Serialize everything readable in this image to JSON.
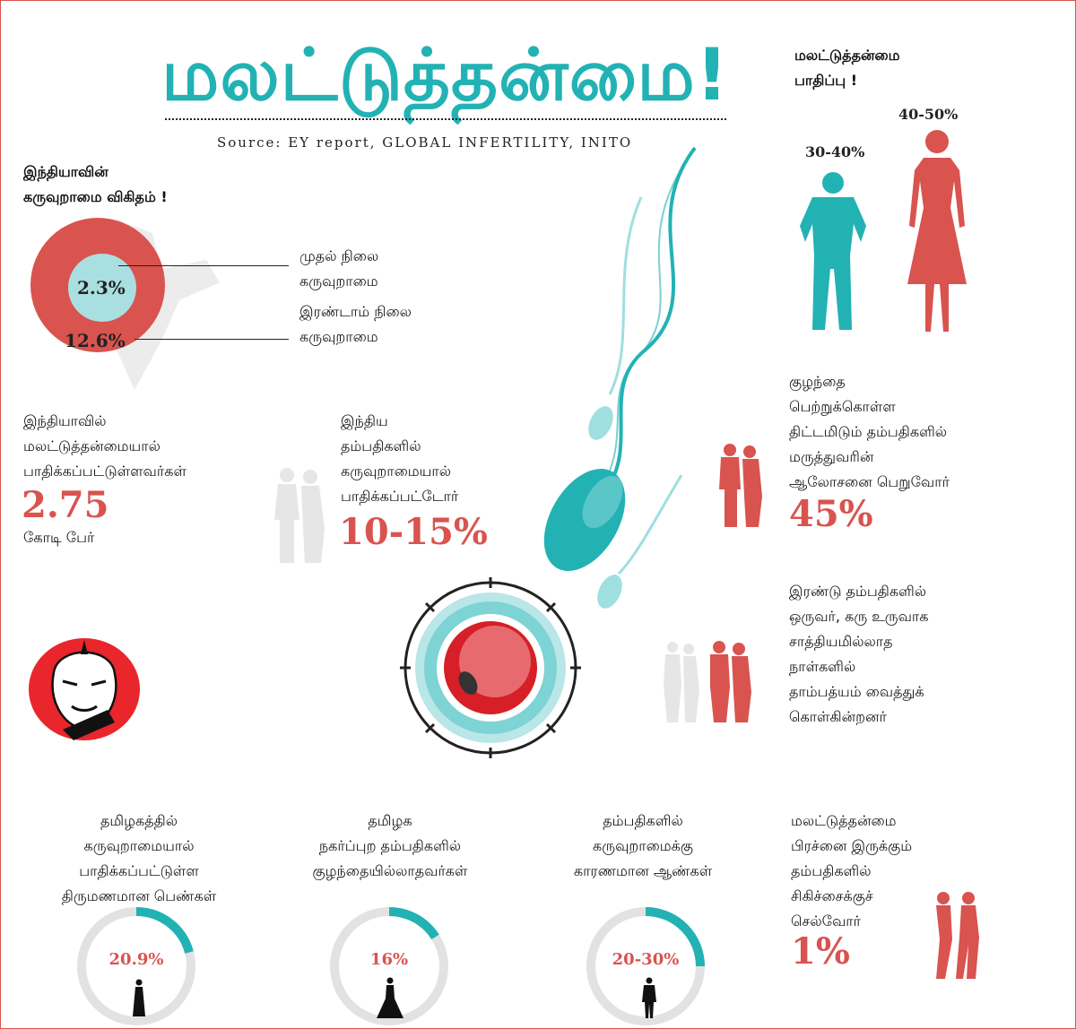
{
  "header": {
    "title": "மலட்டுத்தன்மை!",
    "source": "Source: EY report, GLOBAL INFERTILITY, INITO"
  },
  "india_rate": {
    "heading_line1": "இந்தியாவின்",
    "heading_line2": "கருவுறாமை விகிதம் !",
    "primary_value": "2.3%",
    "primary_label_line1": "முதல் நிலை",
    "primary_label_line2": "கருவுறாமை",
    "secondary_value": "12.6%",
    "secondary_label_line1": "இரண்டாம் நிலை",
    "secondary_label_line2": "கருவுறாமை"
  },
  "impact": {
    "heading_line1": "மலட்டுத்தன்மை",
    "heading_line2": "பாதிப்பு !",
    "male_value": "30-40%",
    "female_value": "40-50%"
  },
  "india_affected": {
    "line1": "இந்தியாவில்",
    "line2": "மலட்டுத்தன்மையால்",
    "line3": "பாதிக்கப்பட்டுள்ளவர்கள்",
    "value": "2.75",
    "unit": "கோடி பேர்"
  },
  "couples_affected": {
    "line1": "இந்திய",
    "line2": "தம்பதிகளில்",
    "line3": "கருவுறாமையால்",
    "line4": "பாதிக்கப்பட்டோர்",
    "value": "10-15%"
  },
  "consult": {
    "line1": "குழந்தை",
    "line2": "பெற்றுக்கொள்ள",
    "line3": "திட்டமிடும் தம்பதிகளில்",
    "line4": "மருத்துவரின்",
    "line5": "ஆலோசனை பெறுவோர்",
    "value": "45%"
  },
  "timing": {
    "line1": "இரண்டு தம்பதிகளில்",
    "line2": "ஒருவர், கரு உருவாக",
    "line3": "சாத்தியமில்லாத",
    "line4": "நாள்களில்",
    "line5": "தாம்பத்யம் வைத்துக்",
    "line6": "கொள்கின்றனர்"
  },
  "stats": [
    {
      "line1": "தமிழகத்தில்",
      "line2": "கருவுறாமையால்",
      "line3": "பாதிக்கப்பட்டுள்ள",
      "line4": "திருமணமான பெண்கள்",
      "value": "20.9%"
    },
    {
      "line1": "தமிழக",
      "line2": "நகர்ப்புற தம்பதிகளில்",
      "line3": "குழந்தையில்லாதவர்கள்",
      "line4": "",
      "value": "16%"
    },
    {
      "line1": "தம்பதிகளில்",
      "line2": "கருவுறாமைக்கு",
      "line3": "காரணமான ஆண்கள்",
      "line4": "",
      "value": "20-30%"
    }
  ],
  "treatment": {
    "line1": "மலட்டுத்தன்மை",
    "line2": "பிரச்னை இருக்கும்",
    "line3": "தம்பதிகளில்",
    "line4": "சிகிச்சைக்குச்",
    "line5": "செல்வோர்",
    "value": "1%"
  },
  "ring_fractions": [
    0.209,
    0.16,
    0.25
  ],
  "colors": {
    "teal": "#23b2b4",
    "red": "#d9534f",
    "grey": "#e2e2e2"
  },
  "icons": [
    "sperm-icon",
    "egg-cell-icon",
    "male-silhouette-icon",
    "female-silhouette-icon",
    "couple-icon",
    "cartoon-logo-icon"
  ]
}
